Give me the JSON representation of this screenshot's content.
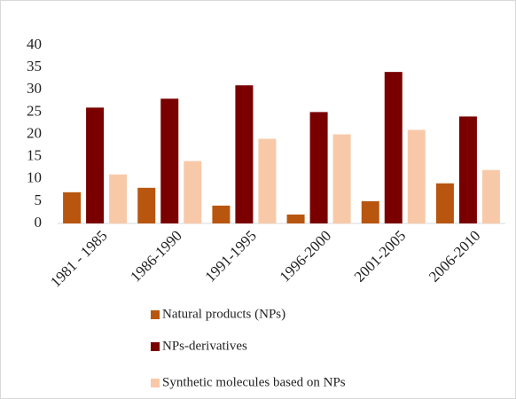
{
  "chart_data": {
    "type": "bar",
    "categories": [
      "1981 - 1985",
      "1986-1990",
      "1991-1995",
      "1996-2000",
      "2001-2005",
      "2006-2010"
    ],
    "series": [
      {
        "name": "Natural products (NPs)",
        "color": "#b8560f",
        "values": [
          7,
          8,
          4,
          2,
          5,
          9
        ]
      },
      {
        "name": "NPs-derivatives",
        "color": "#7a0000",
        "values": [
          26,
          28,
          31,
          25,
          34,
          24
        ]
      },
      {
        "name": "Synthetic molecules based on NPs",
        "color": "#f8c9a8",
        "values": [
          11,
          14,
          19,
          20,
          21,
          12
        ]
      }
    ],
    "ylim": [
      0,
      40
    ],
    "yticks": [
      0,
      5,
      10,
      15,
      20,
      25,
      30,
      35,
      40
    ],
    "grid": false
  }
}
